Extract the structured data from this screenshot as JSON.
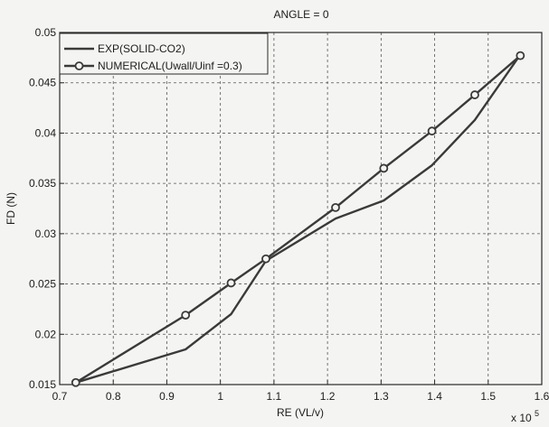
{
  "chart_data": {
    "type": "line",
    "title": "ANGLE = 0",
    "xlabel": "RE (VL/v)",
    "ylabel": "FD (N)",
    "x_multiplier_label": "x 10",
    "x_multiplier_exponent": "5",
    "xlim": [
      0.7,
      1.6
    ],
    "ylim": [
      0.015,
      0.05
    ],
    "x_ticks": [
      "0.7",
      "0.8",
      "0.9",
      "1",
      "1.1",
      "1.2",
      "1.3",
      "1.4",
      "1.5",
      "1.6"
    ],
    "y_ticks": [
      "0.015",
      "0.02",
      "0.025",
      "0.03",
      "0.035",
      "0.04",
      "0.045",
      "0.05"
    ],
    "grid": true,
    "legend_position": "top-left",
    "series": [
      {
        "name": "EXP(SOLID-CO2)",
        "marker": "none",
        "color": "#3a3a3a",
        "x": [
          0.73,
          0.935,
          1.02,
          1.085,
          1.215,
          1.305,
          1.395,
          1.475,
          1.56
        ],
        "y": [
          0.0152,
          0.0185,
          0.022,
          0.0273,
          0.0315,
          0.0333,
          0.0368,
          0.0413,
          0.0478
        ]
      },
      {
        "name": "NUMERICAL(Uwall/Uinf =0.3)",
        "marker": "circle",
        "color": "#3a3a3a",
        "x": [
          0.73,
          0.935,
          1.02,
          1.085,
          1.215,
          1.305,
          1.395,
          1.475,
          1.56
        ],
        "y": [
          0.0152,
          0.0219,
          0.0251,
          0.0275,
          0.0326,
          0.0365,
          0.0402,
          0.0438,
          0.0477
        ]
      }
    ]
  }
}
